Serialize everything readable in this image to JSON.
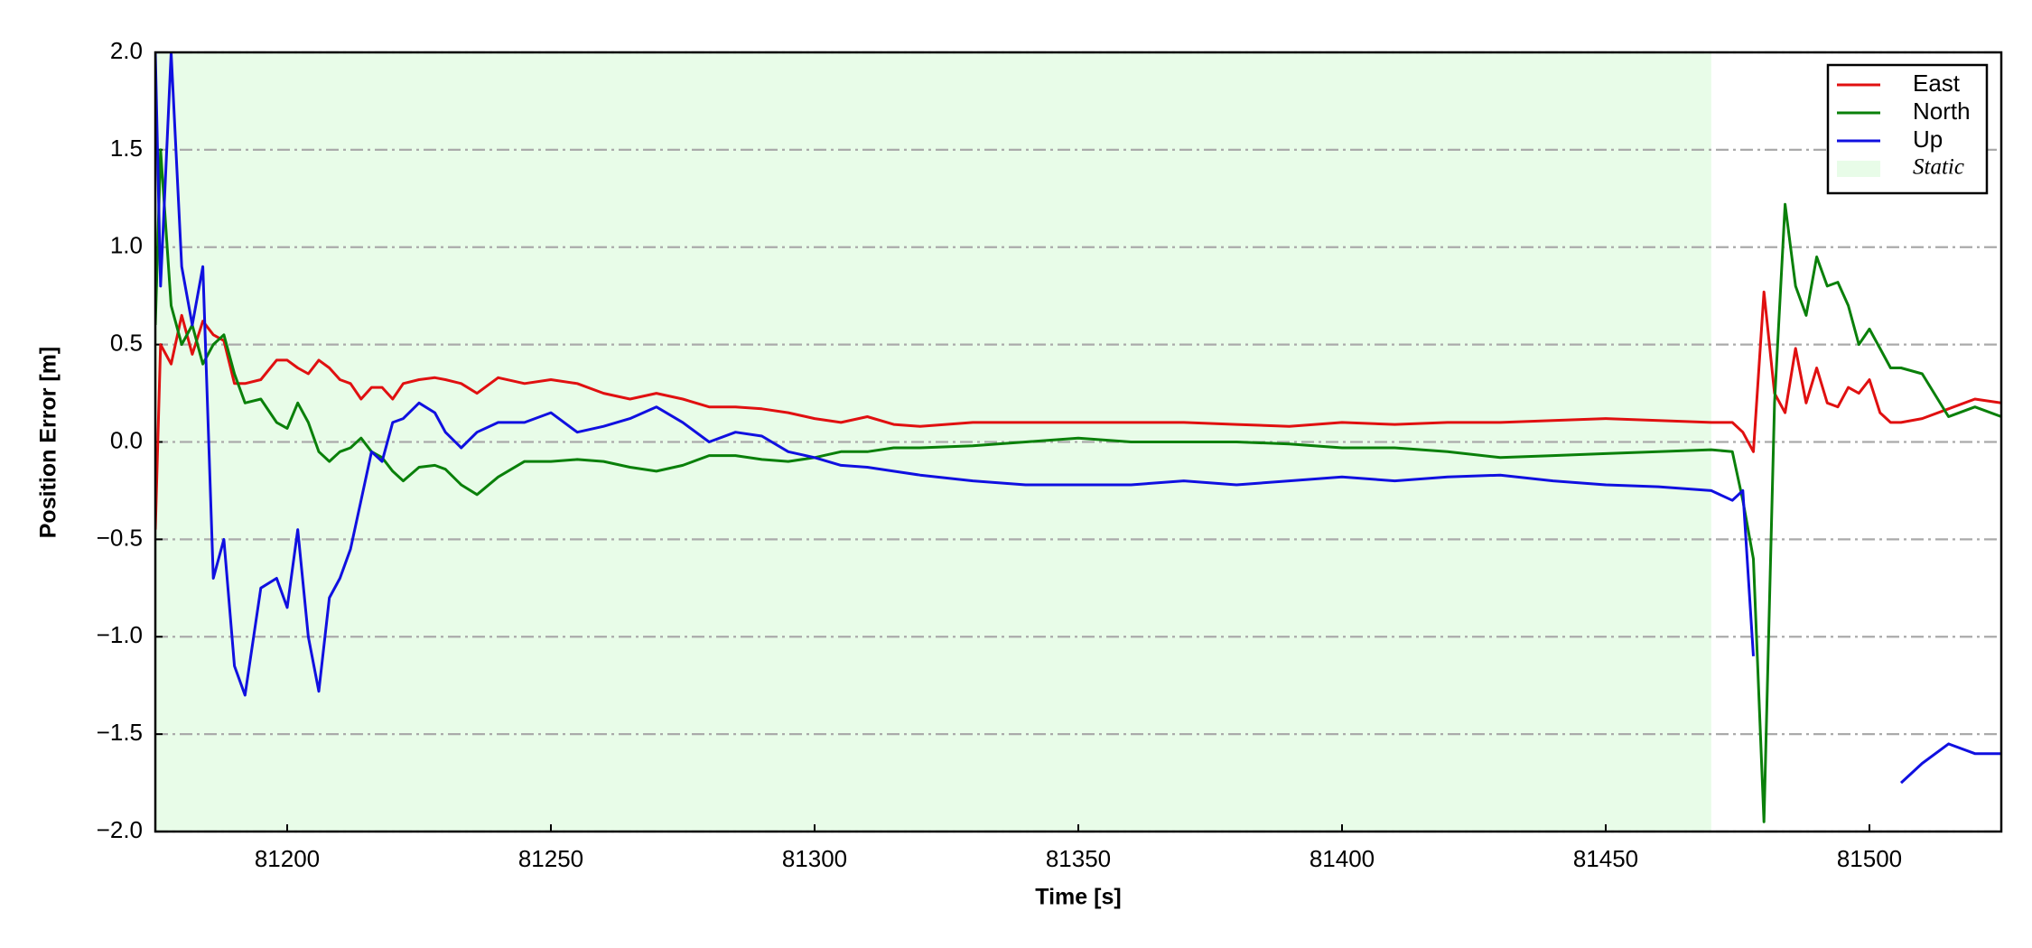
{
  "chart_data": {
    "type": "line",
    "xlabel": "Time [s]",
    "ylabel": "Position Error [m]",
    "x": [
      81175,
      81176,
      81178,
      81180,
      81182,
      81184,
      81186,
      81188,
      81190,
      81192,
      81195,
      81198,
      81200,
      81202,
      81204,
      81206,
      81208,
      81210,
      81212,
      81214,
      81216,
      81218,
      81220,
      81222,
      81225,
      81228,
      81230,
      81233,
      81236,
      81240,
      81245,
      81250,
      81255,
      81260,
      81265,
      81270,
      81275,
      81280,
      81285,
      81290,
      81295,
      81300,
      81305,
      81310,
      81315,
      81320,
      81330,
      81340,
      81350,
      81360,
      81370,
      81380,
      81390,
      81400,
      81410,
      81420,
      81430,
      81440,
      81450,
      81460,
      81470,
      81474,
      81476,
      81478,
      81480,
      81482,
      81484,
      81486,
      81488,
      81490,
      81492,
      81494,
      81496,
      81498,
      81500,
      81502,
      81504,
      81506,
      81510,
      81515,
      81520,
      81525
    ],
    "series": [
      {
        "name": "East",
        "color": "#e01010",
        "values": [
          -0.45,
          0.5,
          0.4,
          0.65,
          0.45,
          0.62,
          0.55,
          0.52,
          0.3,
          0.3,
          0.32,
          0.42,
          0.42,
          0.38,
          0.35,
          0.42,
          0.38,
          0.32,
          0.3,
          0.22,
          0.28,
          0.28,
          0.22,
          0.3,
          0.32,
          0.33,
          0.32,
          0.3,
          0.25,
          0.33,
          0.3,
          0.32,
          0.3,
          0.25,
          0.22,
          0.25,
          0.22,
          0.18,
          0.18,
          0.17,
          0.15,
          0.12,
          0.1,
          0.13,
          0.09,
          0.08,
          0.1,
          0.1,
          0.1,
          0.1,
          0.1,
          0.09,
          0.08,
          0.1,
          0.09,
          0.1,
          0.1,
          0.11,
          0.12,
          0.11,
          0.1,
          0.1,
          0.05,
          -0.05,
          0.77,
          0.25,
          0.15,
          0.48,
          0.2,
          0.38,
          0.2,
          0.18,
          0.28,
          0.25,
          0.32,
          0.15,
          0.1,
          0.1,
          0.12,
          0.17,
          0.22,
          0.2
        ]
      },
      {
        "name": "North",
        "color": "#0a800a",
        "values": [
          0.6,
          1.5,
          0.7,
          0.5,
          0.6,
          0.4,
          0.5,
          0.55,
          0.35,
          0.2,
          0.22,
          0.1,
          0.07,
          0.2,
          0.1,
          -0.05,
          -0.1,
          -0.05,
          -0.03,
          0.02,
          -0.05,
          -0.08,
          -0.15,
          -0.2,
          -0.13,
          -0.12,
          -0.14,
          -0.22,
          -0.27,
          -0.18,
          -0.1,
          -0.1,
          -0.09,
          -0.1,
          -0.13,
          -0.15,
          -0.12,
          -0.07,
          -0.07,
          -0.09,
          -0.1,
          -0.08,
          -0.05,
          -0.05,
          -0.03,
          -0.03,
          -0.02,
          0.0,
          0.02,
          0.0,
          0.0,
          0.0,
          -0.01,
          -0.03,
          -0.03,
          -0.05,
          -0.08,
          -0.07,
          -0.06,
          -0.05,
          -0.04,
          -0.05,
          -0.3,
          -0.6,
          -1.95,
          0.2,
          1.22,
          0.8,
          0.65,
          0.95,
          0.8,
          0.82,
          0.7,
          0.5,
          0.58,
          0.48,
          0.38,
          0.38,
          0.35,
          0.13,
          0.18,
          0.13
        ]
      },
      {
        "name": "Up",
        "color": "#1010e0",
        "values": [
          2.0,
          0.8,
          2.0,
          0.9,
          0.6,
          0.9,
          -0.7,
          -0.5,
          -1.15,
          -1.3,
          -0.75,
          -0.7,
          -0.85,
          -0.45,
          -1.0,
          -1.28,
          -0.8,
          -0.7,
          -0.55,
          -0.3,
          -0.05,
          -0.1,
          0.1,
          0.12,
          0.2,
          0.15,
          0.05,
          -0.03,
          0.05,
          0.1,
          0.1,
          0.15,
          0.05,
          0.08,
          0.12,
          0.18,
          0.1,
          0.0,
          0.05,
          0.03,
          -0.05,
          -0.08,
          -0.12,
          -0.13,
          -0.15,
          -0.17,
          -0.2,
          -0.22,
          -0.22,
          -0.22,
          -0.2,
          -0.22,
          -0.2,
          -0.18,
          -0.2,
          -0.18,
          -0.17,
          -0.2,
          -0.22,
          -0.23,
          -0.25,
          -0.3,
          -0.25,
          -1.1,
          null,
          null,
          null,
          null,
          null,
          null,
          null,
          null,
          null,
          null,
          null,
          null,
          null,
          -1.75,
          -1.65,
          -1.55,
          -1.6,
          -1.6
        ]
      }
    ],
    "shaded": {
      "name": "Static",
      "xlim": [
        81175,
        81470
      ],
      "color": "#e8fce8"
    },
    "xlim": [
      81175,
      81525
    ],
    "xticks": [
      81200,
      81250,
      81300,
      81350,
      81400,
      81450,
      81500
    ],
    "ylim": [
      -2,
      2
    ],
    "yticks": [
      {
        "value": -2,
        "label": "−2.0"
      },
      {
        "value": -1.5,
        "label": "−1.5"
      },
      {
        "value": -1,
        "label": "−1.0"
      },
      {
        "value": -0.5,
        "label": "−0.5"
      },
      {
        "value": 0,
        "label": "0.0"
      },
      0.5,
      {
        "value": 1,
        "label": "1.0"
      },
      1.5,
      {
        "value": 2,
        "label": "2.0"
      }
    ],
    "grid": true,
    "legend": "upper right"
  }
}
